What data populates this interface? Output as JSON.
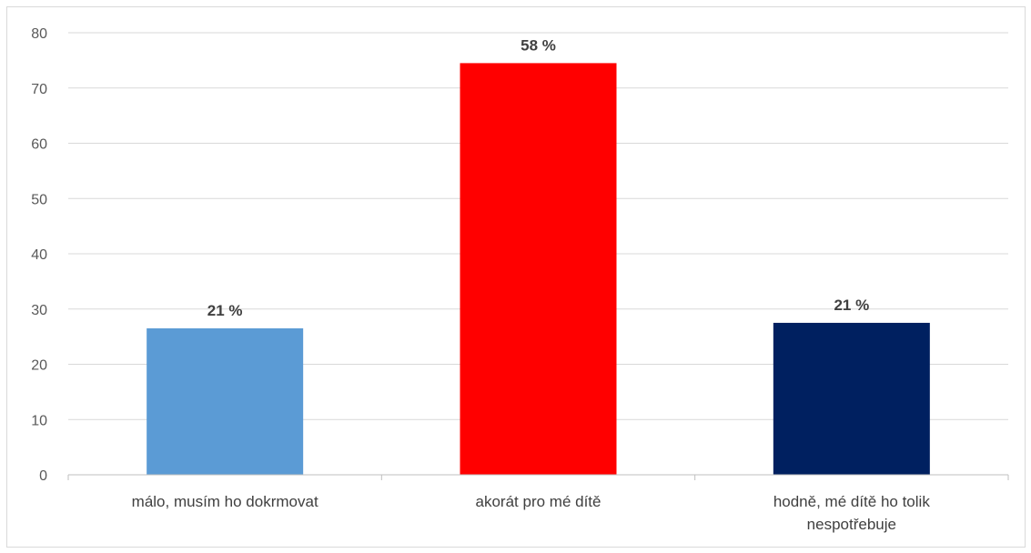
{
  "chart_data": {
    "type": "bar",
    "title": "",
    "xlabel": "",
    "ylabel": "",
    "ylim": [
      0,
      80
    ],
    "yticks": [
      0,
      10,
      20,
      30,
      40,
      50,
      60,
      70,
      80
    ],
    "grid": true,
    "categories": [
      [
        "málo, musím ho dokrmovat"
      ],
      [
        "akorát pro mé dítě"
      ],
      [
        "hodně, mé dítě ho tolik",
        "nespotřebuje"
      ]
    ],
    "values": [
      26.5,
      74.5,
      27.5
    ],
    "data_labels": [
      "21 %",
      "58 %",
      "21 %"
    ],
    "colors": [
      "#5b9bd5",
      "#ff0000",
      "#002060"
    ]
  }
}
